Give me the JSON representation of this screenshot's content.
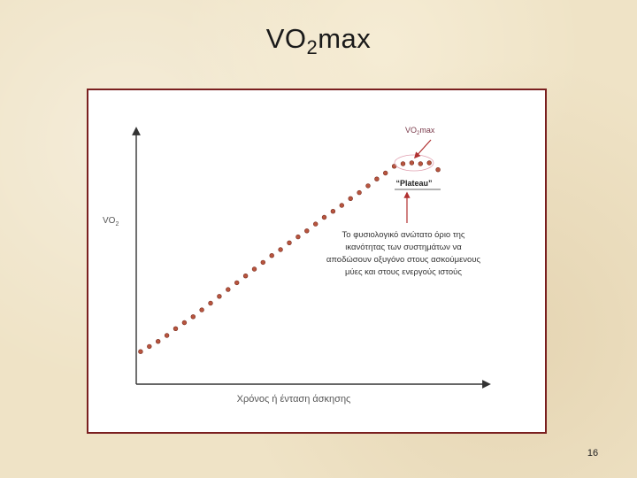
{
  "slide": {
    "title_main": "VO",
    "title_sub": "2",
    "title_tail": "max",
    "page_number": "16"
  },
  "colors": {
    "background": "#efe3c6",
    "frame_border": "#7a2020",
    "marker": "#b8553f",
    "marker_edge": "#7a2e20",
    "annotation_text": "#7a3a4a",
    "arrow": "#b03030"
  },
  "chart_data": {
    "type": "scatter",
    "ylabel_main": "VO",
    "ylabel_sub": "2",
    "xlabel": "Χρόνος ή ένταση άσκησης",
    "axes_ticks": false,
    "grid": false,
    "legend": "none",
    "series": [
      {
        "values_x": [
          0.5,
          1.5,
          2.5,
          3.5,
          4.5,
          5.5,
          6.5,
          7.5,
          8.5,
          9.5,
          10.5,
          11.5,
          12.5,
          13.5,
          14.5,
          15.5,
          16.5,
          17.5,
          18.5,
          19.5,
          20.5,
          21.5,
          22.5,
          23.5,
          24.5,
          25.5,
          26.5,
          27.5,
          28.5,
          29.5,
          30.5,
          31.5,
          32.5,
          33.5,
          34.5
        ],
        "values_y": [
          0.5,
          1.1,
          1.7,
          2.4,
          3.2,
          3.9,
          4.6,
          5.4,
          6.2,
          7.0,
          7.8,
          8.6,
          9.4,
          10.2,
          11.0,
          11.8,
          12.5,
          13.3,
          14.0,
          14.7,
          15.5,
          16.3,
          17.0,
          17.7,
          18.5,
          19.2,
          20.0,
          20.8,
          21.5,
          22.3,
          22.6,
          22.7,
          22.6,
          22.7,
          21.9
        ]
      }
    ],
    "annotations": {
      "peak_label_main": "VO",
      "peak_label_sub": "2",
      "peak_label_tail": "max",
      "plateau_label": "“Plateau”",
      "description_lines": [
        "Το φυσιολογικό ανώτατο όριο της",
        "ικανότητας των συστημάτων να",
        "αποδώσουν οξυγόνο στους ασκούμενους",
        "μύες και στους ενεργούς ιστούς"
      ]
    }
  }
}
